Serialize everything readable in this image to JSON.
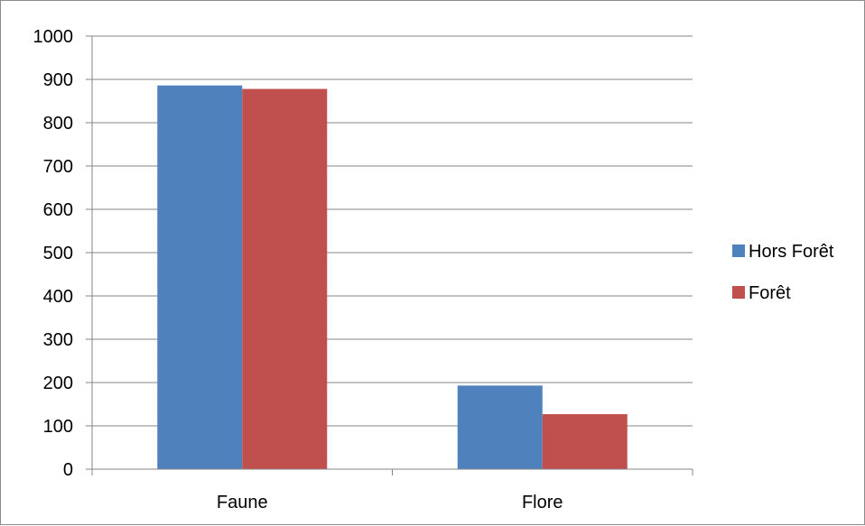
{
  "chart_data": {
    "type": "bar",
    "title": "",
    "xlabel": "",
    "ylabel": "",
    "categories": [
      "Faune",
      "Flore"
    ],
    "series": [
      {
        "name": "Hors Forêt",
        "values": [
          886,
          193
        ],
        "color": "#4f81bd"
      },
      {
        "name": "Forêt",
        "values": [
          878,
          127
        ],
        "color": "#c0504d"
      }
    ],
    "ylim": [
      0,
      1000
    ],
    "yticks": [
      "0",
      "100",
      "200",
      "300",
      "400",
      "500",
      "600",
      "700",
      "800",
      "900",
      "1000"
    ],
    "grid": true,
    "legend_position": "right"
  }
}
